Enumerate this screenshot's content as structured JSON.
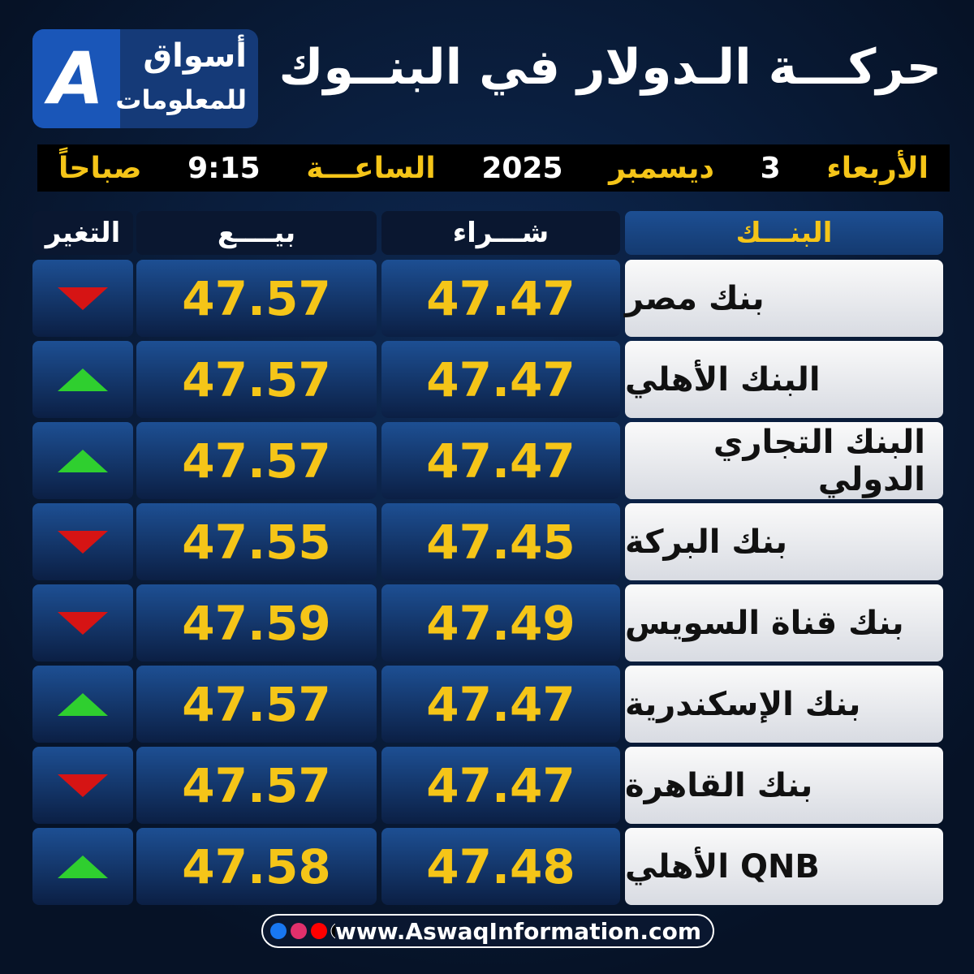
{
  "header": {
    "title": "حركـــة الـدولار في البنــوك",
    "logo_name": "أسواق",
    "logo_sub": "للمعلومات"
  },
  "date_line": {
    "day": "الأربعاء",
    "day_num": "3",
    "month": "ديسمبر",
    "year": "2025",
    "time_label": "الساعـــة",
    "time": "9:15",
    "period": "صباحاً"
  },
  "table": {
    "columns": [
      "البنـــك",
      "شـــراء",
      "بيــــع",
      "التغير"
    ],
    "rows": [
      {
        "bank": "بنك مصر",
        "buy": "47.47",
        "sell": "47.57",
        "change": "down"
      },
      {
        "bank": "البنك الأهلي",
        "buy": "47.47",
        "sell": "47.57",
        "change": "up"
      },
      {
        "bank": "البنك التجاري الدولي",
        "buy": "47.47",
        "sell": "47.57",
        "change": "up"
      },
      {
        "bank": "بنك البركة",
        "buy": "47.45",
        "sell": "47.55",
        "change": "down"
      },
      {
        "bank": "بنك قناة السويس",
        "buy": "47.49",
        "sell": "47.59",
        "change": "down"
      },
      {
        "bank": "بنك الإسكندرية",
        "buy": "47.47",
        "sell": "47.57",
        "change": "up"
      },
      {
        "bank": "بنك القاهرة",
        "buy": "47.47",
        "sell": "47.57",
        "change": "down"
      },
      {
        "bank": "QNB الأهلي",
        "buy": "47.48",
        "sell": "47.58",
        "change": "up"
      }
    ]
  },
  "footer": {
    "url": "www.AswaqInformation.com"
  }
}
